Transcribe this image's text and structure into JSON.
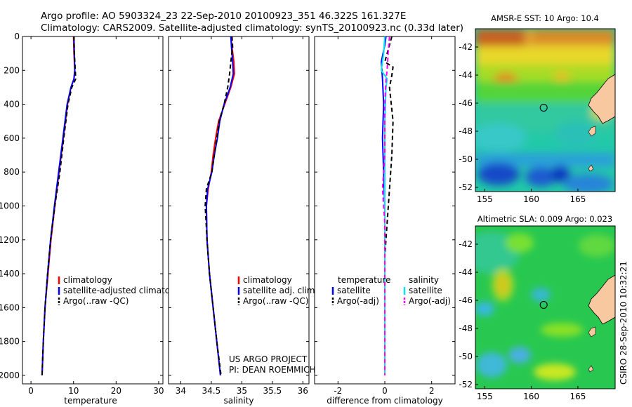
{
  "header": {
    "line1": "Argo profile: AO 5903324_23 22-Sep-2010 20100923_351 46.322S 161.327E",
    "line2": "Climatology: CARS2009. Satellite-adjusted climatology: synTS_20100923.nc (0.33d later)"
  },
  "credit": {
    "project": "US ARGO PROJECT",
    "pi": "PI: DEAN ROEMMICH",
    "stamp": "CSIRO 28-Sep-2010 10:32:21"
  },
  "colors": {
    "climatology": "#ff0000",
    "satellite": "#0000ff",
    "argo": "#000000",
    "satellite_diff": "#00e5ee",
    "argo_sal_diff": "#ff00ff"
  },
  "chart_data": [
    {
      "id": "temperature",
      "type": "line",
      "xlabel": "temperature",
      "ylabel": "",
      "xlim": [
        -2,
        31
      ],
      "ylim": [
        2050,
        0
      ],
      "xticks": [
        0,
        10,
        20,
        30
      ],
      "yticks": [
        0,
        200,
        400,
        600,
        800,
        1000,
        1200,
        1400,
        1600,
        1800,
        2000
      ],
      "legend": {
        "placement": "lower-right",
        "entries": [
          "climatology",
          "satellite-adjusted climatology",
          "Argo(..raw -QC)"
        ]
      },
      "series": [
        {
          "name": "climatology",
          "style": "solid",
          "color": "#ff0000",
          "points": [
            [
              10.0,
              0
            ],
            [
              10.1,
              100
            ],
            [
              10.3,
              200
            ],
            [
              10.1,
              250
            ],
            [
              9.4,
              300
            ],
            [
              8.6,
              400
            ],
            [
              7.6,
              600
            ],
            [
              6.6,
              800
            ],
            [
              5.6,
              1000
            ],
            [
              4.7,
              1200
            ],
            [
              4.0,
              1400
            ],
            [
              3.3,
              1600
            ],
            [
              2.9,
              1800
            ],
            [
              2.6,
              2000
            ]
          ]
        },
        {
          "name": "satellite-adjusted climatology",
          "style": "solid",
          "color": "#0000ff",
          "points": [
            [
              10.1,
              0
            ],
            [
              10.2,
              100
            ],
            [
              10.3,
              200
            ],
            [
              10.1,
              250
            ],
            [
              9.4,
              300
            ],
            [
              8.5,
              400
            ],
            [
              7.5,
              600
            ],
            [
              6.5,
              800
            ],
            [
              5.5,
              1000
            ],
            [
              4.6,
              1200
            ],
            [
              3.9,
              1400
            ],
            [
              3.3,
              1600
            ],
            [
              2.9,
              1800
            ],
            [
              2.6,
              2000
            ]
          ]
        },
        {
          "name": "Argo(..raw -QC)",
          "style": "dashed",
          "color": "#000000",
          "points": [
            [
              10.1,
              0
            ],
            [
              10.2,
              100
            ],
            [
              10.4,
              200
            ],
            [
              10.5,
              250
            ],
            [
              9.6,
              300
            ],
            [
              8.7,
              400
            ],
            [
              7.7,
              600
            ],
            [
              6.8,
              800
            ],
            [
              5.6,
              1000
            ],
            [
              4.6,
              1200
            ],
            [
              3.9,
              1400
            ],
            [
              3.3,
              1600
            ],
            [
              2.9,
              1800
            ],
            [
              2.6,
              2000
            ]
          ]
        }
      ]
    },
    {
      "id": "salinity",
      "type": "line",
      "xlabel": "salinity",
      "ylabel": "",
      "xlim": [
        33.8,
        36.1
      ],
      "ylim": [
        2050,
        0
      ],
      "xticks": [
        34,
        34.5,
        35,
        35.5,
        36
      ],
      "xtick_labels": [
        "34",
        "34.5",
        "35",
        "35.5",
        "36"
      ],
      "legend": {
        "placement": "lower-right",
        "entries": [
          "climatology",
          "satellite adj. clim.",
          "Argo(..raw -QC)"
        ]
      },
      "series": [
        {
          "name": "climatology",
          "style": "solid",
          "color": "#ff0000",
          "points": [
            [
              34.82,
              0
            ],
            [
              34.84,
              60
            ],
            [
              34.87,
              150
            ],
            [
              34.88,
              220
            ],
            [
              34.82,
              300
            ],
            [
              34.72,
              400
            ],
            [
              34.62,
              500
            ],
            [
              34.57,
              600
            ],
            [
              34.53,
              700
            ],
            [
              34.5,
              800
            ],
            [
              34.45,
              900
            ],
            [
              34.42,
              1000
            ],
            [
              34.43,
              1200
            ],
            [
              34.47,
              1400
            ],
            [
              34.53,
              1600
            ],
            [
              34.59,
              1800
            ],
            [
              34.65,
              2000
            ]
          ]
        },
        {
          "name": "satellite adj. clim.",
          "style": "solid",
          "color": "#0000ff",
          "points": [
            [
              34.82,
              0
            ],
            [
              34.83,
              60
            ],
            [
              34.85,
              150
            ],
            [
              34.86,
              220
            ],
            [
              34.81,
              300
            ],
            [
              34.71,
              400
            ],
            [
              34.64,
              500
            ],
            [
              34.6,
              600
            ],
            [
              34.55,
              700
            ],
            [
              34.51,
              800
            ],
            [
              34.44,
              900
            ],
            [
              34.42,
              1000
            ],
            [
              34.43,
              1200
            ],
            [
              34.47,
              1400
            ],
            [
              34.53,
              1600
            ],
            [
              34.59,
              1800
            ],
            [
              34.65,
              2000
            ]
          ]
        },
        {
          "name": "Argo(..raw -QC)",
          "style": "dashed",
          "color": "#000000",
          "points": [
            [
              34.84,
              0
            ],
            [
              34.85,
              60
            ],
            [
              34.82,
              150
            ],
            [
              34.8,
              220
            ],
            [
              34.77,
              300
            ],
            [
              34.71,
              400
            ],
            [
              34.63,
              500
            ],
            [
              34.59,
              600
            ],
            [
              34.55,
              700
            ],
            [
              34.51,
              800
            ],
            [
              34.42,
              900
            ],
            [
              34.4,
              1000
            ],
            [
              34.43,
              1200
            ],
            [
              34.47,
              1400
            ],
            [
              34.53,
              1600
            ],
            [
              34.59,
              1800
            ],
            [
              34.66,
              2000
            ]
          ]
        }
      ]
    },
    {
      "id": "difference",
      "type": "line",
      "xlabel": "difference from climatology",
      "ylabel": "",
      "xlim": [
        -3,
        3
      ],
      "ylim": [
        2050,
        0
      ],
      "xticks": [
        -2,
        0,
        2
      ],
      "legend": {
        "placement": "lower-center",
        "columns": [
          {
            "header": "temperature",
            "entries": [
              "satellite",
              "Argo(-adj)"
            ]
          },
          {
            "header": "salinity",
            "entries": [
              "satellite",
              "Argo(-adj)"
            ]
          }
        ]
      },
      "series": [
        {
          "name": "temperature satellite",
          "style": "solid",
          "color": "#0000ff",
          "points": [
            [
              0.05,
              0
            ],
            [
              0.0,
              50
            ],
            [
              -0.15,
              150
            ],
            [
              -0.1,
              250
            ],
            [
              -0.05,
              400
            ],
            [
              -0.1,
              600
            ],
            [
              -0.05,
              800
            ],
            [
              0.0,
              1000
            ],
            [
              0.0,
              1200
            ],
            [
              0.0,
              1400
            ],
            [
              0.0,
              1600
            ],
            [
              0.0,
              1800
            ],
            [
              0.0,
              2000
            ]
          ]
        },
        {
          "name": "temperature Argo(-adj)",
          "style": "dashed",
          "color": "#000000",
          "points": [
            [
              0.3,
              0
            ],
            [
              0.2,
              50
            ],
            [
              0.0,
              150
            ],
            [
              0.35,
              180
            ],
            [
              0.3,
              230
            ],
            [
              0.2,
              300
            ],
            [
              0.35,
              500
            ],
            [
              0.3,
              700
            ],
            [
              0.2,
              900
            ],
            [
              0.1,
              1100
            ],
            [
              0.0,
              1300
            ],
            [
              0.0,
              1500
            ],
            [
              0.0,
              1700
            ],
            [
              0.0,
              2000
            ]
          ]
        },
        {
          "name": "salinity satellite",
          "style": "solid",
          "color": "#00e5ee",
          "points": [
            [
              0.0,
              0
            ],
            [
              -0.05,
              100
            ],
            [
              -0.15,
              200
            ],
            [
              0.1,
              250
            ],
            [
              0.05,
              300
            ],
            [
              0.0,
              500
            ],
            [
              0.0,
              800
            ],
            [
              0.0,
              1000
            ],
            [
              0.0,
              1200
            ],
            [
              0.0,
              1400
            ],
            [
              0.0,
              1600
            ],
            [
              0.0,
              1800
            ],
            [
              0.0,
              2000
            ]
          ]
        },
        {
          "name": "salinity Argo(-adj)",
          "style": "dashed",
          "color": "#ff00ff",
          "points": [
            [
              0.2,
              0
            ],
            [
              0.15,
              80
            ],
            [
              0.1,
              200
            ],
            [
              0.05,
              250
            ],
            [
              0.0,
              400
            ],
            [
              0.0,
              700
            ],
            [
              -0.1,
              900
            ],
            [
              -0.05,
              1000
            ],
            [
              0.0,
              1100
            ],
            [
              0.0,
              1400
            ],
            [
              0.0,
              1700
            ],
            [
              0.0,
              2000
            ]
          ]
        }
      ]
    },
    {
      "id": "sst-map",
      "type": "heatmap",
      "title": "AMSR-E SST: 10 Argo: 10.4",
      "xlim": [
        154,
        169
      ],
      "ylim": [
        -52.3,
        -40.7
      ],
      "xticks": [
        155,
        160,
        165
      ],
      "yticks": [
        -42,
        -44,
        -46,
        -48,
        -50,
        -52
      ],
      "marker": {
        "lon": 161.327,
        "lat": -46.322
      }
    },
    {
      "id": "sla-map",
      "type": "heatmap",
      "title": "Altimetric SLA: 0.009 Argo: 0.023",
      "xlim": [
        154,
        169
      ],
      "ylim": [
        -52.3,
        -40.7
      ],
      "xticks": [
        155,
        160,
        165
      ],
      "yticks": [
        -42,
        -44,
        -46,
        -48,
        -50,
        -52
      ],
      "marker": {
        "lon": 161.327,
        "lat": -46.322
      }
    }
  ]
}
